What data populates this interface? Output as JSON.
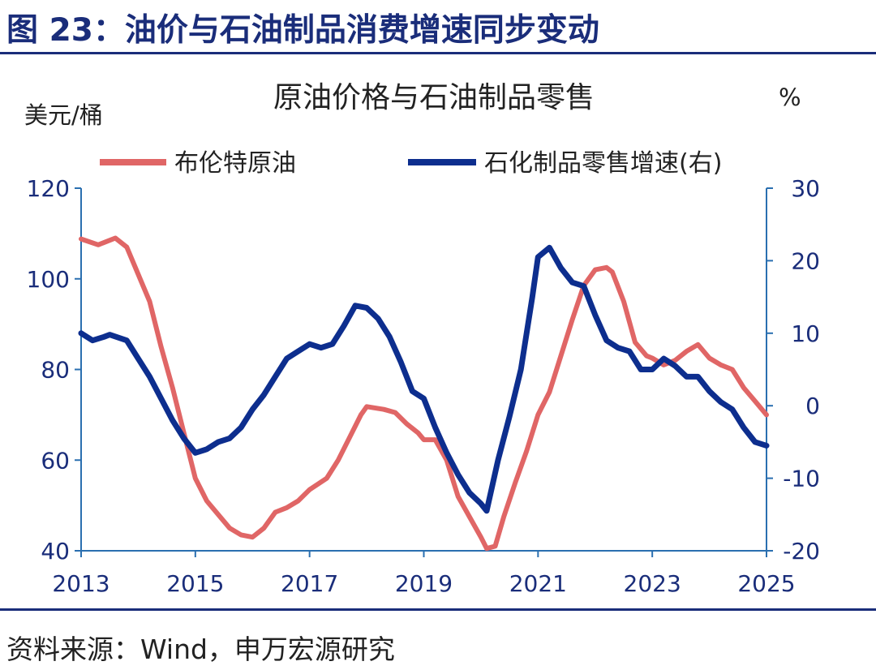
{
  "header": {
    "figure_title": "图 23：油价与石油制品消费增速同步变动"
  },
  "footer": {
    "source": "资料来源：Wind，申万宏源研究"
  },
  "colors": {
    "brent": "#e06666",
    "petro": "#0d2e8e",
    "axis": "#2a6fb0",
    "ticks": "#1a2d7a"
  },
  "chart_data": {
    "type": "line",
    "title": "原油价格与石油制品零售",
    "y_left_unit": "美元/桶",
    "y_right_unit": "%",
    "x_ticks": [
      "2013",
      "2015",
      "2017",
      "2019",
      "2021",
      "2023",
      "2025"
    ],
    "xlim": [
      2013,
      2025
    ],
    "y_left": {
      "ticks": [
        "120",
        "100",
        "80",
        "60",
        "40"
      ],
      "lim": [
        40,
        120
      ]
    },
    "y_right": {
      "ticks": [
        "30",
        "20",
        "10",
        "0",
        "-10",
        "-20"
      ],
      "lim": [
        -20,
        30
      ]
    },
    "legend": [
      "布伦特原油",
      "石化制品零售增速(右)"
    ],
    "series": [
      {
        "name": "布伦特原油",
        "axis": "left",
        "points": [
          [
            2013.0,
            108.8
          ],
          [
            2013.3,
            107.5
          ],
          [
            2013.6,
            109.0
          ],
          [
            2013.8,
            107.0
          ],
          [
            2014.0,
            101.0
          ],
          [
            2014.2,
            95.0
          ],
          [
            2014.4,
            85.0
          ],
          [
            2014.6,
            76.0
          ],
          [
            2014.8,
            66.0
          ],
          [
            2015.0,
            56.0
          ],
          [
            2015.2,
            51.0
          ],
          [
            2015.4,
            48.0
          ],
          [
            2015.6,
            45.0
          ],
          [
            2015.8,
            43.5
          ],
          [
            2016.0,
            43.0
          ],
          [
            2016.2,
            45.0
          ],
          [
            2016.4,
            48.5
          ],
          [
            2016.6,
            49.5
          ],
          [
            2016.8,
            51.0
          ],
          [
            2017.0,
            53.5
          ],
          [
            2017.3,
            56.0
          ],
          [
            2017.5,
            60.0
          ],
          [
            2017.7,
            65.0
          ],
          [
            2017.9,
            70.0
          ],
          [
            2018.0,
            71.8
          ],
          [
            2018.3,
            71.2
          ],
          [
            2018.5,
            70.5
          ],
          [
            2018.7,
            68.0
          ],
          [
            2018.9,
            66.0
          ],
          [
            2019.0,
            64.5
          ],
          [
            2019.2,
            64.5
          ],
          [
            2019.4,
            60.0
          ],
          [
            2019.6,
            52.0
          ],
          [
            2019.8,
            47.5
          ],
          [
            2020.0,
            43.0
          ],
          [
            2020.1,
            40.5
          ],
          [
            2020.25,
            41.0
          ],
          [
            2020.4,
            47.5
          ],
          [
            2020.6,
            55.0
          ],
          [
            2020.8,
            62.0
          ],
          [
            2021.0,
            70.0
          ],
          [
            2021.2,
            75.0
          ],
          [
            2021.4,
            83.0
          ],
          [
            2021.6,
            91.0
          ],
          [
            2021.8,
            98.5
          ],
          [
            2022.0,
            102.0
          ],
          [
            2022.2,
            102.5
          ],
          [
            2022.3,
            101.5
          ],
          [
            2022.5,
            95.0
          ],
          [
            2022.7,
            86.0
          ],
          [
            2022.9,
            83.0
          ],
          [
            2023.0,
            82.5
          ],
          [
            2023.2,
            81.0
          ],
          [
            2023.4,
            82.0
          ],
          [
            2023.6,
            84.0
          ],
          [
            2023.8,
            85.5
          ],
          [
            2024.0,
            82.5
          ],
          [
            2024.2,
            81.0
          ],
          [
            2024.4,
            80.0
          ],
          [
            2024.6,
            76.0
          ],
          [
            2024.8,
            73.0
          ],
          [
            2025.0,
            70.0
          ]
        ]
      },
      {
        "name": "石化制品零售增速(右)",
        "axis": "right",
        "points": [
          [
            2013.0,
            10.0
          ],
          [
            2013.2,
            9.0
          ],
          [
            2013.4,
            9.5
          ],
          [
            2013.5,
            9.8
          ],
          [
            2013.8,
            9.0
          ],
          [
            2014.0,
            6.5
          ],
          [
            2014.2,
            4.0
          ],
          [
            2014.4,
            1.0
          ],
          [
            2014.6,
            -2.0
          ],
          [
            2014.8,
            -4.5
          ],
          [
            2015.0,
            -6.5
          ],
          [
            2015.2,
            -6.0
          ],
          [
            2015.4,
            -5.0
          ],
          [
            2015.6,
            -4.5
          ],
          [
            2015.8,
            -3.0
          ],
          [
            2016.0,
            -0.5
          ],
          [
            2016.2,
            1.5
          ],
          [
            2016.4,
            4.0
          ],
          [
            2016.6,
            6.5
          ],
          [
            2016.8,
            7.5
          ],
          [
            2017.0,
            8.5
          ],
          [
            2017.2,
            8.0
          ],
          [
            2017.4,
            8.5
          ],
          [
            2017.6,
            11.0
          ],
          [
            2017.8,
            13.8
          ],
          [
            2018.0,
            13.5
          ],
          [
            2018.2,
            12.0
          ],
          [
            2018.4,
            9.5
          ],
          [
            2018.6,
            6.0
          ],
          [
            2018.8,
            2.0
          ],
          [
            2019.0,
            1.0
          ],
          [
            2019.2,
            -3.0
          ],
          [
            2019.4,
            -6.5
          ],
          [
            2019.6,
            -9.5
          ],
          [
            2019.8,
            -12.0
          ],
          [
            2020.0,
            -13.5
          ],
          [
            2020.1,
            -14.5
          ],
          [
            2020.3,
            -7.5
          ],
          [
            2020.5,
            -1.5
          ],
          [
            2020.7,
            5.0
          ],
          [
            2020.9,
            15.0
          ],
          [
            2021.0,
            20.5
          ],
          [
            2021.2,
            21.8
          ],
          [
            2021.4,
            19.0
          ],
          [
            2021.6,
            17.0
          ],
          [
            2021.8,
            16.5
          ],
          [
            2022.0,
            12.5
          ],
          [
            2022.2,
            9.0
          ],
          [
            2022.4,
            8.0
          ],
          [
            2022.6,
            7.5
          ],
          [
            2022.8,
            5.0
          ],
          [
            2023.0,
            5.0
          ],
          [
            2023.2,
            6.5
          ],
          [
            2023.4,
            5.5
          ],
          [
            2023.6,
            4.0
          ],
          [
            2023.8,
            4.0
          ],
          [
            2024.0,
            2.0
          ],
          [
            2024.2,
            0.5
          ],
          [
            2024.4,
            -0.5
          ],
          [
            2024.6,
            -3.0
          ],
          [
            2024.8,
            -5.0
          ],
          [
            2025.0,
            -5.5
          ]
        ]
      }
    ]
  }
}
